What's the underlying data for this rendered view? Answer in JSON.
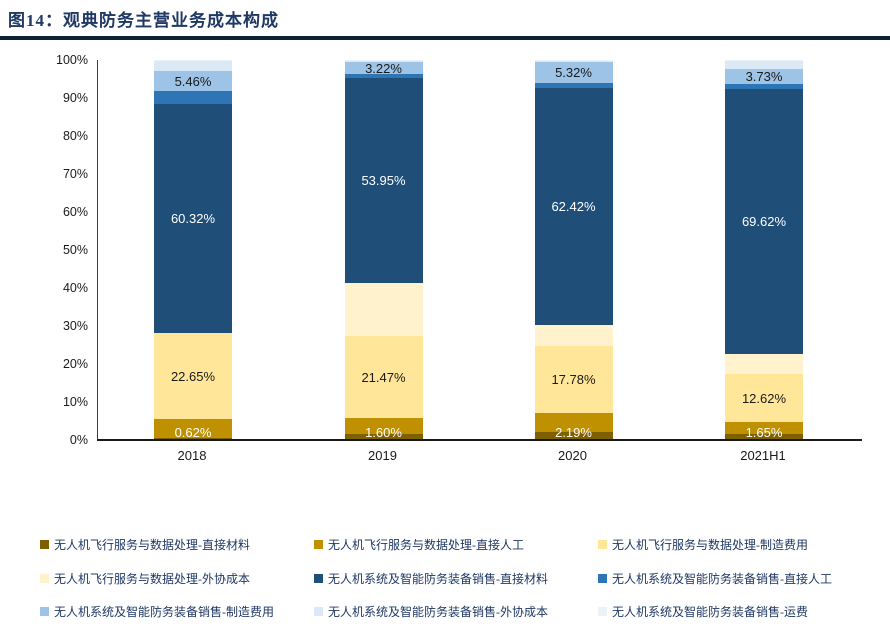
{
  "header": {
    "title": "图14：观典防务主营业务成本构成"
  },
  "chart_data": {
    "type": "bar",
    "subtype": "stacked-percentage",
    "title": "观典防务主营业务成本构成",
    "categories": [
      "2018",
      "2019",
      "2020",
      "2021H1"
    ],
    "y_ticks": [
      "0%",
      "10%",
      "20%",
      "30%",
      "40%",
      "50%",
      "60%",
      "70%",
      "80%",
      "90%",
      "100%"
    ],
    "ylim": [
      0,
      100
    ],
    "grid": false,
    "legend_position": "bottom",
    "series": [
      {
        "name": "无人机飞行服务与数据处理-直接材料",
        "color": "#7F6000",
        "values": [
          0.62,
          1.6,
          2.19,
          1.65
        ],
        "labels": [
          "0.62%",
          "1.60%",
          "2.19%",
          "1.65%"
        ],
        "label_color": "#FFFFFF",
        "label_anchor": "bottom"
      },
      {
        "name": "无人机飞行服务与数据处理-直接人工",
        "color": "#BF9000",
        "values": [
          4.85,
          4.2,
          4.8,
          3.0
        ]
      },
      {
        "name": "无人机飞行服务与数据处理-制造费用",
        "color": "#FFE699",
        "values": [
          22.65,
          21.47,
          17.78,
          12.62
        ],
        "labels": [
          "22.65%",
          "21.47%",
          "17.78%",
          "12.62%"
        ],
        "label_color": "#1a1a1a"
      },
      {
        "name": "无人机飞行服务与数据处理-外协成本",
        "color": "#FFF2CC",
        "values": [
          0.1,
          14.0,
          5.5,
          5.4
        ]
      },
      {
        "name": "无人机系统及智能防务装备销售-直接材料",
        "color": "#1F4E79",
        "values": [
          60.32,
          53.95,
          62.42,
          69.62
        ],
        "labels": [
          "60.32%",
          "53.95%",
          "62.42%",
          "69.62%"
        ],
        "label_color": "#FFFFFF"
      },
      {
        "name": "无人机系统及智能防务装备销售-直接人工",
        "color": "#2E75B6",
        "values": [
          3.2,
          1.0,
          1.4,
          1.5
        ]
      },
      {
        "name": "无人机系统及智能防务装备销售-制造费用",
        "color": "#9DC3E6",
        "values": [
          5.46,
          3.22,
          5.32,
          3.73
        ],
        "labels": [
          "5.46%",
          "3.22%",
          "5.32%",
          "3.73%"
        ],
        "label_color": "#1a1a1a"
      },
      {
        "name": "无人机系统及智能防务装备销售-外协成本",
        "color": "#DBE8F6",
        "values": [
          2.5,
          0.4,
          0.4,
          2.3
        ]
      },
      {
        "name": "无人机系统及智能防务装备销售-运费",
        "color": "#EDF1F8",
        "values": [
          0.3,
          0.16,
          0.19,
          0.18
        ]
      }
    ]
  }
}
